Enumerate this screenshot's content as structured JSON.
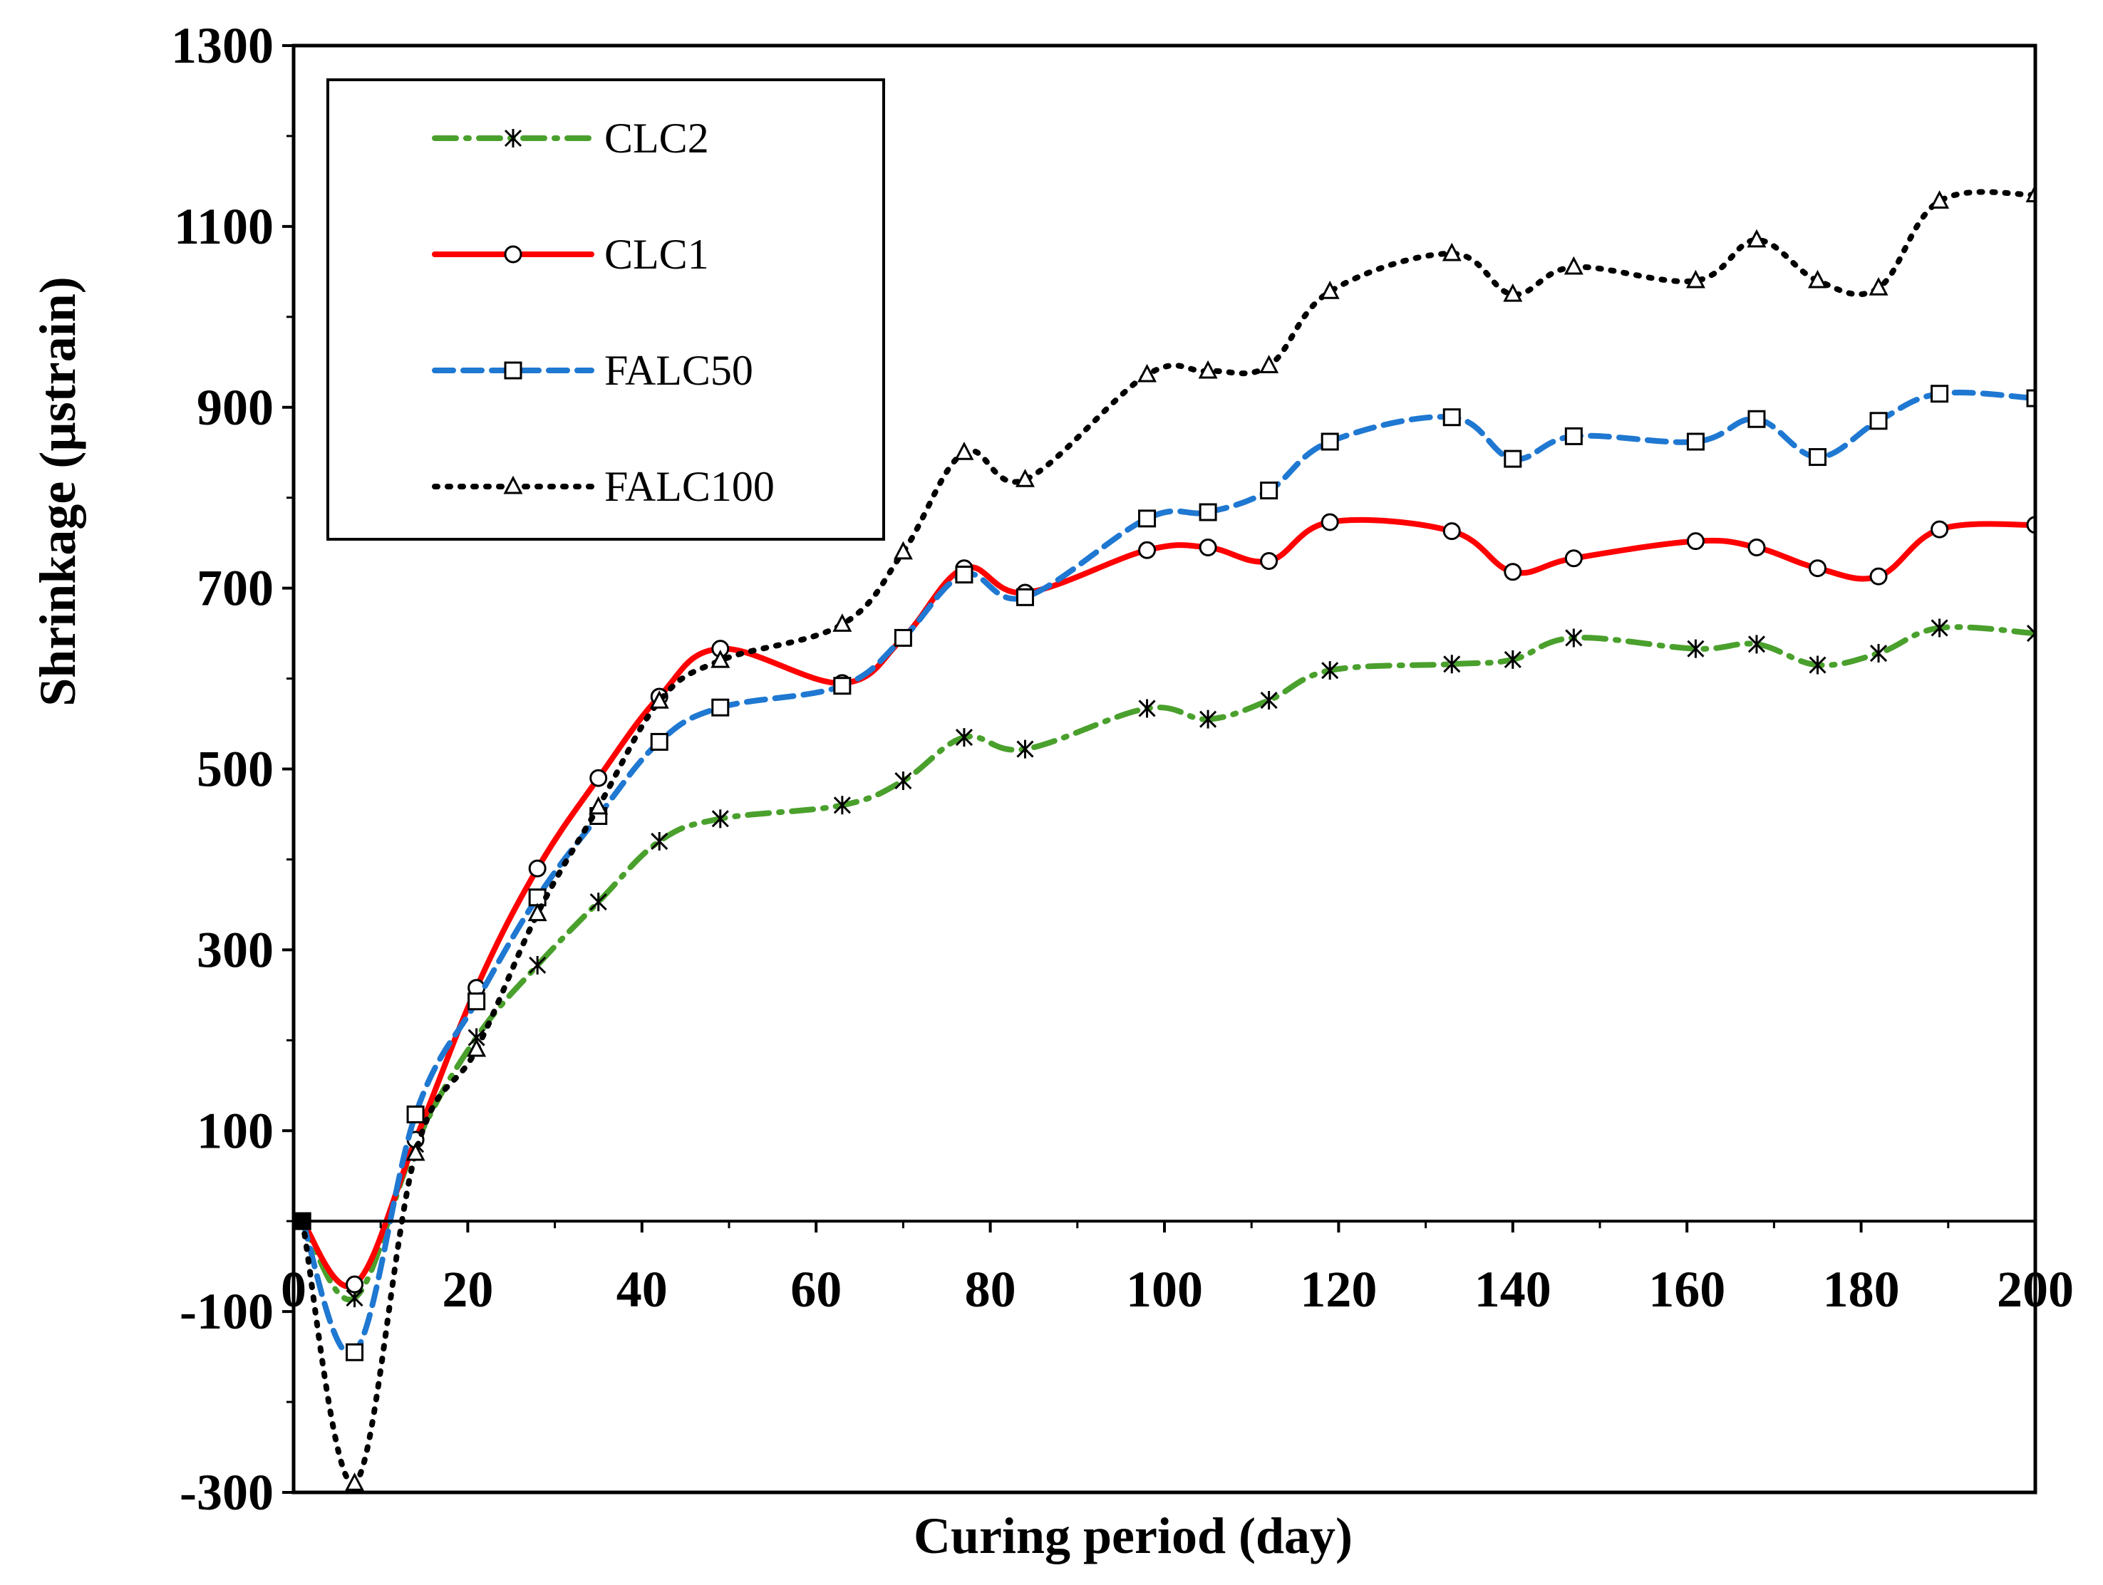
{
  "chart_data": {
    "type": "line",
    "title": "",
    "xlabel": "Curing period (day)",
    "ylabel": "Shrinkage (µstrain)",
    "xlim": [
      0,
      200
    ],
    "ylim": [
      -300,
      1300
    ],
    "x_ticks": [
      0,
      20,
      40,
      60,
      80,
      100,
      120,
      140,
      160,
      180,
      200
    ],
    "y_ticks": [
      -300,
      -100,
      100,
      300,
      500,
      700,
      900,
      1100,
      1300
    ],
    "y_tick_labels": [
      "-300",
      "-100",
      "100",
      "300",
      "500",
      "700",
      "900",
      "1100",
      "1300"
    ],
    "x_tick_labels": [
      "0",
      "20",
      "40",
      "60",
      "80",
      "100",
      "120",
      "140",
      "160",
      "180",
      "200"
    ],
    "grid": false,
    "legend_position": "top-left",
    "series": [
      {
        "name": "CLC2",
        "color": "#4aa02c",
        "dash": "dash-dot",
        "marker": "asterisk",
        "points": [
          [
            1,
            0
          ],
          [
            7,
            -85
          ],
          [
            14,
            85
          ],
          [
            21,
            203
          ],
          [
            28,
            283
          ],
          [
            35,
            353
          ],
          [
            42,
            420
          ],
          [
            49,
            445
          ],
          [
            63,
            460
          ],
          [
            70,
            487
          ],
          [
            77,
            535
          ],
          [
            84,
            522
          ],
          [
            98,
            567
          ],
          [
            105,
            555
          ],
          [
            112,
            576
          ],
          [
            119,
            609
          ],
          [
            133,
            616
          ],
          [
            140,
            621
          ],
          [
            147,
            645
          ],
          [
            161,
            633
          ],
          [
            168,
            638
          ],
          [
            175,
            615
          ],
          [
            182,
            628
          ],
          [
            189,
            656
          ],
          [
            200,
            650
          ]
        ]
      },
      {
        "name": "CLC1",
        "color": "#ff0000",
        "dash": "solid",
        "marker": "circle",
        "points": [
          [
            1,
            0
          ],
          [
            7,
            -70
          ],
          [
            14,
            90
          ],
          [
            21,
            258
          ],
          [
            28,
            390
          ],
          [
            35,
            490
          ],
          [
            42,
            580
          ],
          [
            49,
            633
          ],
          [
            63,
            595
          ],
          [
            70,
            645
          ],
          [
            77,
            722
          ],
          [
            84,
            695
          ],
          [
            98,
            742
          ],
          [
            105,
            745
          ],
          [
            112,
            730
          ],
          [
            119,
            773
          ],
          [
            133,
            763
          ],
          [
            140,
            718
          ],
          [
            147,
            733
          ],
          [
            161,
            752
          ],
          [
            168,
            745
          ],
          [
            175,
            722
          ],
          [
            182,
            713
          ],
          [
            189,
            765
          ],
          [
            200,
            770
          ]
        ]
      },
      {
        "name": "FALC50",
        "color": "#1f78d1",
        "dash": "dashed",
        "marker": "square",
        "points": [
          [
            1,
            0
          ],
          [
            7,
            -145
          ],
          [
            14,
            118
          ],
          [
            21,
            243
          ],
          [
            28,
            358
          ],
          [
            35,
            448
          ],
          [
            42,
            530
          ],
          [
            49,
            568
          ],
          [
            63,
            592
          ],
          [
            70,
            645
          ],
          [
            77,
            715
          ],
          [
            84,
            690
          ],
          [
            98,
            777
          ],
          [
            105,
            784
          ],
          [
            112,
            808
          ],
          [
            119,
            862
          ],
          [
            133,
            889
          ],
          [
            140,
            843
          ],
          [
            147,
            868
          ],
          [
            161,
            862
          ],
          [
            168,
            887
          ],
          [
            175,
            845
          ],
          [
            182,
            885
          ],
          [
            189,
            915
          ],
          [
            200,
            910
          ]
        ]
      },
      {
        "name": "FALC100",
        "color": "#000000",
        "dash": "dotted",
        "marker": "triangle",
        "points": [
          [
            1,
            0
          ],
          [
            7,
            -290
          ],
          [
            14,
            75
          ],
          [
            21,
            190
          ],
          [
            28,
            340
          ],
          [
            35,
            458
          ],
          [
            42,
            575
          ],
          [
            49,
            620
          ],
          [
            63,
            660
          ],
          [
            70,
            740
          ],
          [
            77,
            850
          ],
          [
            84,
            820
          ],
          [
            98,
            936
          ],
          [
            105,
            940
          ],
          [
            112,
            946
          ],
          [
            119,
            1028
          ],
          [
            133,
            1070
          ],
          [
            140,
            1025
          ],
          [
            147,
            1055
          ],
          [
            161,
            1040
          ],
          [
            168,
            1085
          ],
          [
            175,
            1040
          ],
          [
            182,
            1032
          ],
          [
            189,
            1128
          ],
          [
            200,
            1135
          ]
        ]
      }
    ]
  }
}
